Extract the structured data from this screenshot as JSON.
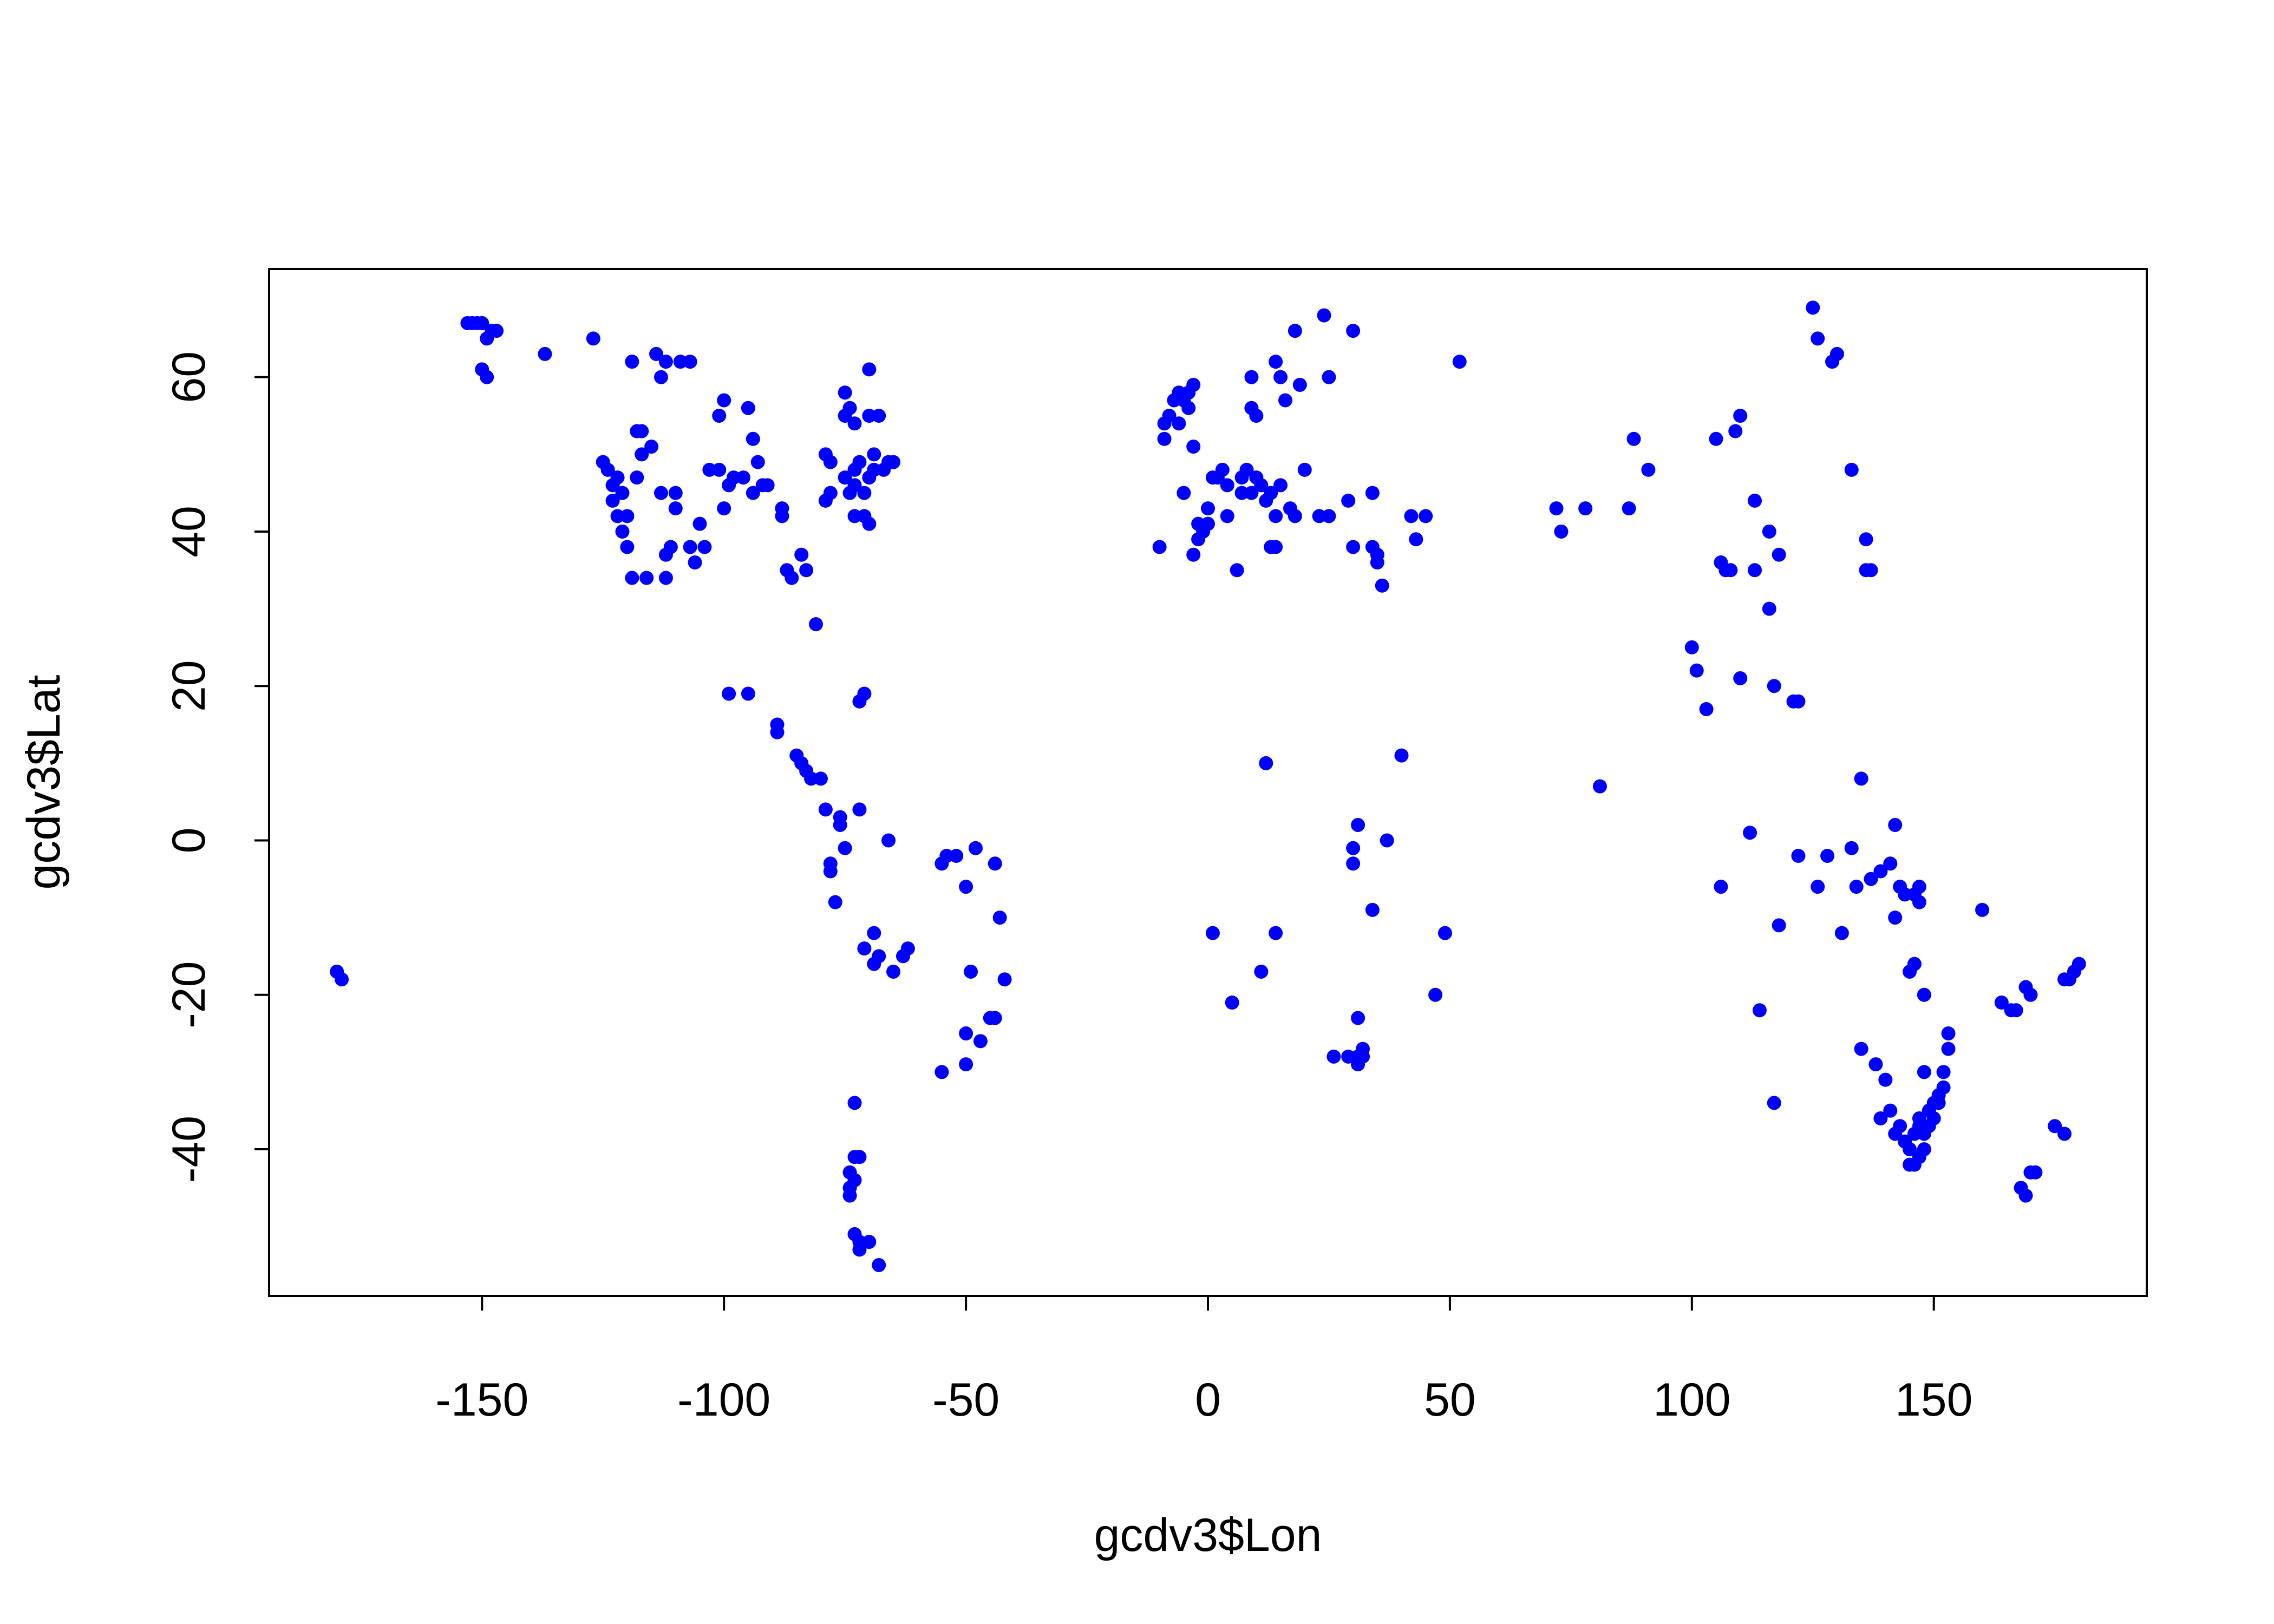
{
  "chart_data": {
    "type": "scatter",
    "xlabel": "gcdv3$Lon",
    "ylabel": "gcdv3$Lat",
    "xlim": [
      -194,
      194
    ],
    "ylim": [
      -59,
      74
    ],
    "xticks": [
      -150,
      -100,
      -50,
      0,
      50,
      100,
      150
    ],
    "yticks": [
      -40,
      -20,
      0,
      20,
      40,
      60
    ],
    "point_color": "#0000FF",
    "series": [
      {
        "points": [
          [
            -180,
            -17
          ],
          [
            -179,
            -18
          ],
          [
            -153,
            67
          ],
          [
            -152,
            67
          ],
          [
            -151,
            67
          ],
          [
            -150,
            67
          ],
          [
            -150,
            61
          ],
          [
            -149,
            60
          ],
          [
            -149,
            65
          ],
          [
            -148,
            66
          ],
          [
            -147,
            66
          ],
          [
            -137,
            63
          ],
          [
            -127,
            65
          ],
          [
            -125,
            49
          ],
          [
            -124,
            48
          ],
          [
            -123,
            46
          ],
          [
            -123,
            44
          ],
          [
            -122,
            42
          ],
          [
            -122,
            47
          ],
          [
            -121,
            45
          ],
          [
            -121,
            40
          ],
          [
            -120,
            42
          ],
          [
            -120,
            38
          ],
          [
            -119,
            62
          ],
          [
            -119,
            34
          ],
          [
            -118,
            47
          ],
          [
            -118,
            53
          ],
          [
            -117,
            50
          ],
          [
            -117,
            53
          ],
          [
            -116,
            34
          ],
          [
            -115,
            51
          ],
          [
            -114,
            63
          ],
          [
            -113,
            45
          ],
          [
            -113,
            60
          ],
          [
            -112,
            62
          ],
          [
            -112,
            37
          ],
          [
            -112,
            34
          ],
          [
            -111,
            38
          ],
          [
            -110,
            43
          ],
          [
            -110,
            45
          ],
          [
            -109,
            62
          ],
          [
            -107,
            62
          ],
          [
            -107,
            38
          ],
          [
            -106,
            36
          ],
          [
            -105,
            41
          ],
          [
            -104,
            38
          ],
          [
            -103,
            48
          ],
          [
            -101,
            48
          ],
          [
            -101,
            55
          ],
          [
            -100,
            57
          ],
          [
            -100,
            43
          ],
          [
            -99,
            19
          ],
          [
            -99,
            46
          ],
          [
            -98,
            47
          ],
          [
            -96,
            47
          ],
          [
            -95,
            56
          ],
          [
            -95,
            19
          ],
          [
            -94,
            45
          ],
          [
            -94,
            52
          ],
          [
            -93,
            49
          ],
          [
            -92,
            46
          ],
          [
            -91,
            46
          ],
          [
            -89,
            15
          ],
          [
            -89,
            14
          ],
          [
            -88,
            42
          ],
          [
            -88,
            43
          ],
          [
            -87,
            35
          ],
          [
            -86,
            34
          ],
          [
            -85,
            11
          ],
          [
            -84,
            37
          ],
          [
            -84,
            10
          ],
          [
            -83,
            9
          ],
          [
            -83,
            35
          ],
          [
            -82,
            8
          ],
          [
            -81,
            28
          ],
          [
            -80,
            8
          ],
          [
            -79,
            44
          ],
          [
            -79,
            50
          ],
          [
            -79,
            4
          ],
          [
            -78,
            49
          ],
          [
            -78,
            45
          ],
          [
            -78,
            -3
          ],
          [
            -78,
            -4
          ],
          [
            -77,
            -8
          ],
          [
            -76,
            2
          ],
          [
            -76,
            3
          ],
          [
            -75,
            47
          ],
          [
            -75,
            -1
          ],
          [
            -75,
            55
          ],
          [
            -75,
            58
          ],
          [
            -74,
            45
          ],
          [
            -74,
            56
          ],
          [
            -73,
            42
          ],
          [
            -73,
            46
          ],
          [
            -73,
            48
          ],
          [
            -73,
            54
          ],
          [
            -72,
            18
          ],
          [
            -72,
            49
          ],
          [
            -72,
            4
          ],
          [
            -71,
            45
          ],
          [
            -71,
            42
          ],
          [
            -71,
            19
          ],
          [
            -70,
            41
          ],
          [
            -70,
            47
          ],
          [
            -70,
            61
          ],
          [
            -70,
            55
          ],
          [
            -69,
            48
          ],
          [
            -69,
            50
          ],
          [
            -68,
            55
          ],
          [
            -67,
            48
          ],
          [
            -66,
            49
          ],
          [
            -65,
            49
          ],
          [
            -71,
            -14
          ],
          [
            -69,
            -12
          ],
          [
            -69,
            -16
          ],
          [
            -68,
            -15
          ],
          [
            -66,
            0
          ],
          [
            -65,
            -17
          ],
          [
            -63,
            -15
          ],
          [
            -62,
            -14
          ],
          [
            -73,
            -34
          ],
          [
            -73,
            -41
          ],
          [
            -74,
            -43
          ],
          [
            -74,
            -45
          ],
          [
            -73,
            -44
          ],
          [
            -74,
            -46
          ],
          [
            -72,
            -41
          ],
          [
            -73,
            -51
          ],
          [
            -72,
            -52
          ],
          [
            -72,
            -53
          ],
          [
            -70,
            -52
          ],
          [
            -68,
            -55
          ],
          [
            -55,
            -3
          ],
          [
            -54,
            -2
          ],
          [
            -52,
            -2
          ],
          [
            -50,
            -6
          ],
          [
            -49,
            -17
          ],
          [
            -48,
            -1
          ],
          [
            -47,
            -26
          ],
          [
            -50,
            -25
          ],
          [
            -50,
            -29
          ],
          [
            -55,
            -30
          ],
          [
            -45,
            -23
          ],
          [
            -44,
            -23
          ],
          [
            -44,
            -3
          ],
          [
            -43,
            -10
          ],
          [
            -42,
            -18
          ],
          [
            -10,
            38
          ],
          [
            -9,
            52
          ],
          [
            -9,
            54
          ],
          [
            -8,
            55
          ],
          [
            -7,
            57
          ],
          [
            -6,
            58
          ],
          [
            -6,
            54
          ],
          [
            -5,
            45
          ],
          [
            -5,
            57
          ],
          [
            -4,
            58
          ],
          [
            -4,
            56
          ],
          [
            -3,
            59
          ],
          [
            -3,
            51
          ],
          [
            -3,
            37
          ],
          [
            -2,
            39
          ],
          [
            -2,
            41
          ],
          [
            -1,
            40
          ],
          [
            0,
            41
          ],
          [
            0,
            43
          ],
          [
            1,
            47
          ],
          [
            1,
            -12
          ],
          [
            2,
            47
          ],
          [
            3,
            48
          ],
          [
            4,
            46
          ],
          [
            4,
            42
          ],
          [
            5,
            -21
          ],
          [
            6,
            35
          ],
          [
            7,
            47
          ],
          [
            7,
            45
          ],
          [
            8,
            48
          ],
          [
            9,
            45
          ],
          [
            9,
            60
          ],
          [
            9,
            56
          ],
          [
            10,
            47
          ],
          [
            10,
            55
          ],
          [
            11,
            46
          ],
          [
            11,
            -17
          ],
          [
            12,
            10
          ],
          [
            12,
            44
          ],
          [
            13,
            38
          ],
          [
            13,
            45
          ],
          [
            14,
            62
          ],
          [
            14,
            42
          ],
          [
            14,
            38
          ],
          [
            14,
            -12
          ],
          [
            15,
            46
          ],
          [
            15,
            60
          ],
          [
            16,
            57
          ],
          [
            17,
            43
          ],
          [
            18,
            66
          ],
          [
            18,
            42
          ],
          [
            19,
            59
          ],
          [
            20,
            48
          ],
          [
            23,
            42
          ],
          [
            24,
            68
          ],
          [
            25,
            60
          ],
          [
            25,
            42
          ],
          [
            29,
            44
          ],
          [
            29,
            -28
          ],
          [
            30,
            66
          ],
          [
            30,
            38
          ],
          [
            30,
            -1
          ],
          [
            30,
            -3
          ],
          [
            31,
            2
          ],
          [
            31,
            -23
          ],
          [
            31,
            -28
          ],
          [
            31,
            -29
          ],
          [
            32,
            -28
          ],
          [
            32,
            -27
          ],
          [
            26,
            -28
          ],
          [
            34,
            45
          ],
          [
            34,
            38
          ],
          [
            34,
            -9
          ],
          [
            35,
            37
          ],
          [
            35,
            36
          ],
          [
            36,
            33
          ],
          [
            37,
            0
          ],
          [
            40,
            11
          ],
          [
            42,
            42
          ],
          [
            43,
            39
          ],
          [
            45,
            42
          ],
          [
            47,
            -20
          ],
          [
            49,
            -12
          ],
          [
            52,
            62
          ],
          [
            72,
            43
          ],
          [
            73,
            40
          ],
          [
            78,
            43
          ],
          [
            81,
            7
          ],
          [
            87,
            43
          ],
          [
            88,
            52
          ],
          [
            91,
            48
          ],
          [
            100,
            25
          ],
          [
            101,
            22
          ],
          [
            103,
            17
          ],
          [
            105,
            52
          ],
          [
            106,
            36
          ],
          [
            106,
            -6
          ],
          [
            107,
            35
          ],
          [
            108,
            35
          ],
          [
            109,
            53
          ],
          [
            110,
            55
          ],
          [
            110,
            21
          ],
          [
            112,
            1
          ],
          [
            113,
            44
          ],
          [
            113,
            35
          ],
          [
            114,
            -22
          ],
          [
            116,
            30
          ],
          [
            116,
            40
          ],
          [
            117,
            -34
          ],
          [
            117,
            20
          ],
          [
            118,
            37
          ],
          [
            118,
            -11
          ],
          [
            121,
            18
          ],
          [
            122,
            18
          ],
          [
            122,
            -2
          ],
          [
            125,
            69
          ],
          [
            126,
            65
          ],
          [
            126,
            -6
          ],
          [
            128,
            -2
          ],
          [
            129,
            62
          ],
          [
            130,
            63
          ],
          [
            131,
            -12
          ],
          [
            133,
            48
          ],
          [
            133,
            -1
          ],
          [
            134,
            -6
          ],
          [
            135,
            8
          ],
          [
            135,
            -27
          ],
          [
            136,
            39
          ],
          [
            136,
            35
          ],
          [
            137,
            35
          ],
          [
            137,
            -5
          ],
          [
            138,
            -29
          ],
          [
            139,
            -4
          ],
          [
            139,
            -36
          ],
          [
            140,
            -31
          ],
          [
            141,
            -3
          ],
          [
            141,
            -35
          ],
          [
            142,
            2
          ],
          [
            142,
            -10
          ],
          [
            142,
            -38
          ],
          [
            143,
            -6
          ],
          [
            143,
            -37
          ],
          [
            144,
            -7
          ],
          [
            144,
            -39
          ],
          [
            145,
            -17
          ],
          [
            145,
            -40
          ],
          [
            145,
            -42
          ],
          [
            146,
            -16
          ],
          [
            146,
            -7
          ],
          [
            146,
            -38
          ],
          [
            146,
            -42
          ],
          [
            147,
            -6
          ],
          [
            147,
            -8
          ],
          [
            147,
            -37
          ],
          [
            147,
            -36
          ],
          [
            147,
            -41
          ],
          [
            148,
            -30
          ],
          [
            148,
            -20
          ],
          [
            148,
            -38
          ],
          [
            148,
            -40
          ],
          [
            149,
            -35
          ],
          [
            149,
            -37
          ],
          [
            150,
            -34
          ],
          [
            150,
            -36
          ],
          [
            151,
            -34
          ],
          [
            151,
            -33
          ],
          [
            152,
            -32
          ],
          [
            152,
            -30
          ],
          [
            153,
            -27
          ],
          [
            153,
            -25
          ],
          [
            160,
            -9
          ],
          [
            164,
            -21
          ],
          [
            166,
            -22
          ],
          [
            167,
            -22
          ],
          [
            168,
            -45
          ],
          [
            169,
            -19
          ],
          [
            169,
            -46
          ],
          [
            170,
            -20
          ],
          [
            170,
            -43
          ],
          [
            171,
            -43
          ],
          [
            175,
            -37
          ],
          [
            177,
            -38
          ],
          [
            177,
            -18
          ],
          [
            178,
            -18
          ],
          [
            179,
            -17
          ],
          [
            180,
            -16
          ]
        ]
      }
    ]
  }
}
